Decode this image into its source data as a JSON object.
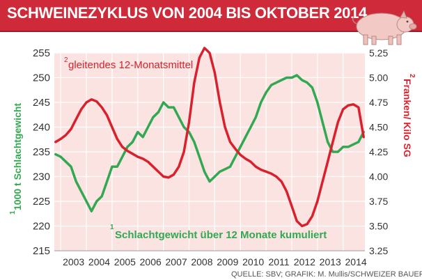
{
  "title": "SCHWEINEZYKLUS VON 2004 BIS OKTOBER 2014",
  "source": "QUELLE: SBV; GRAFIK: M. Mullis/SCHWEIZER BAUER",
  "icons": {
    "header": "pig-icon"
  },
  "colors": {
    "title_bar": "#cf2a3a",
    "plot_background": "#fae3e1",
    "grid": "#ffffff",
    "green_series": "#33a852",
    "red_series": "#d9212d",
    "left_axis_label": "#33a852",
    "right_axis_label": "#d9212d"
  },
  "chart_data": {
    "type": "line",
    "x_labels": [
      "2003",
      "2004",
      "2005",
      "2006",
      "2007",
      "2008",
      "2009",
      "2010",
      "2011",
      "2012",
      "2013",
      "2014"
    ],
    "y_left": {
      "label": "1000 t Schlachtgewicht",
      "superscript": "1",
      "range": [
        215,
        255
      ],
      "ticks": [
        "215",
        "220",
        "225",
        "230",
        "235",
        "240",
        "245",
        "250",
        "255"
      ]
    },
    "y_right": {
      "label": "Franken/ Kilo SG",
      "superscript": "2",
      "range": [
        3.25,
        5.25
      ],
      "ticks": [
        "3.25",
        "3.50",
        "3.75",
        "4.00",
        "4.25",
        "4.50",
        "4.75",
        "5.00",
        "5.25"
      ]
    },
    "grid": true,
    "series": [
      {
        "name": "Schlachtgewicht über 12 Monate kumuliert",
        "superscript": "1",
        "axis": "left",
        "x": [
          2002.8,
          2003.0,
          2003.2,
          2003.4,
          2003.6,
          2003.8,
          2004.0,
          2004.2,
          2004.4,
          2004.6,
          2004.8,
          2005.0,
          2005.2,
          2005.4,
          2005.6,
          2005.8,
          2006.0,
          2006.2,
          2006.4,
          2006.6,
          2006.8,
          2007.0,
          2007.2,
          2007.4,
          2007.6,
          2007.8,
          2008.0,
          2008.2,
          2008.4,
          2008.6,
          2008.8,
          2009.0,
          2009.2,
          2009.4,
          2009.6,
          2009.8,
          2010.0,
          2010.2,
          2010.4,
          2010.6,
          2010.8,
          2011.0,
          2011.2,
          2011.4,
          2011.6,
          2011.8,
          2012.0,
          2012.2,
          2012.4,
          2012.6,
          2012.8,
          2013.0,
          2013.2,
          2013.4,
          2013.6,
          2013.8,
          2014.0,
          2014.2,
          2014.4,
          2014.6,
          2014.8
        ],
        "values": [
          234.5,
          234,
          233,
          232,
          229,
          227,
          225,
          223,
          225,
          226,
          229,
          232,
          232,
          234,
          236,
          237,
          239,
          238,
          240,
          242,
          243,
          245,
          244,
          244,
          242,
          240,
          239,
          237,
          234,
          231,
          229,
          230,
          231,
          231.5,
          232,
          234,
          236,
          238,
          240,
          242,
          245,
          247,
          248.5,
          249,
          249.5,
          250,
          250,
          250.5,
          249.5,
          249,
          248,
          245,
          241,
          237,
          235,
          235,
          236,
          236,
          236.5,
          237,
          239
        ]
      },
      {
        "name": "gleitendes 12-Monatsmittel",
        "superscript": "2",
        "axis": "right",
        "x": [
          2002.8,
          2003.0,
          2003.2,
          2003.4,
          2003.6,
          2003.8,
          2004.0,
          2004.2,
          2004.4,
          2004.6,
          2004.8,
          2005.0,
          2005.2,
          2005.4,
          2005.6,
          2005.8,
          2006.0,
          2006.2,
          2006.4,
          2006.6,
          2006.8,
          2007.0,
          2007.2,
          2007.4,
          2007.6,
          2007.8,
          2008.0,
          2008.2,
          2008.4,
          2008.6,
          2008.8,
          2009.0,
          2009.2,
          2009.4,
          2009.6,
          2009.8,
          2010.0,
          2010.2,
          2010.4,
          2010.6,
          2010.8,
          2011.0,
          2011.2,
          2011.4,
          2011.6,
          2011.8,
          2012.0,
          2012.2,
          2012.4,
          2012.6,
          2012.8,
          2013.0,
          2013.2,
          2013.4,
          2013.6,
          2013.8,
          2014.0,
          2014.2,
          2014.4,
          2014.6,
          2014.8
        ],
        "values": [
          4.35,
          4.38,
          4.42,
          4.48,
          4.58,
          4.68,
          4.75,
          4.78,
          4.76,
          4.7,
          4.62,
          4.5,
          4.38,
          4.3,
          4.26,
          4.23,
          4.2,
          4.18,
          4.15,
          4.1,
          4.05,
          4.0,
          3.99,
          4.02,
          4.1,
          4.25,
          4.55,
          4.95,
          5.2,
          5.3,
          5.25,
          5.05,
          4.75,
          4.5,
          4.35,
          4.28,
          4.22,
          4.18,
          4.15,
          4.1,
          4.07,
          4.05,
          4.03,
          4.0,
          3.95,
          3.85,
          3.7,
          3.55,
          3.5,
          3.52,
          3.6,
          3.75,
          3.95,
          4.15,
          4.35,
          4.55,
          4.68,
          4.72,
          4.73,
          4.7,
          4.4
        ]
      }
    ]
  }
}
